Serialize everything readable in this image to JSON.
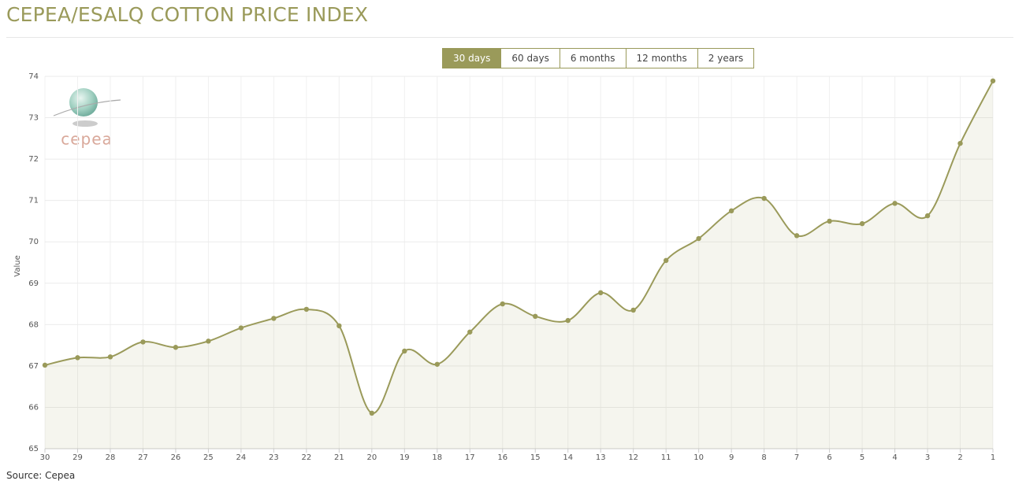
{
  "header": {
    "title": "CEPEA/ESALQ COTTON PRICE INDEX"
  },
  "range_buttons": {
    "labels": [
      "30 days",
      "60 days",
      "6 months",
      "12 months",
      "2 years"
    ],
    "active": 0
  },
  "logo": {
    "text": "cepea"
  },
  "chart_data": {
    "type": "line",
    "y_label": "Value",
    "categories": [
      "30",
      "29",
      "28",
      "27",
      "26",
      "25",
      "24",
      "23",
      "22",
      "21",
      "20",
      "19",
      "18",
      "17",
      "16",
      "15",
      "14",
      "13",
      "12",
      "11",
      "10",
      "9",
      "8",
      "7",
      "6",
      "5",
      "4",
      "3",
      "2",
      "1"
    ],
    "values": [
      67.02,
      67.2,
      67.22,
      67.58,
      67.45,
      67.6,
      67.92,
      68.15,
      68.37,
      67.97,
      65.86,
      67.36,
      67.04,
      67.82,
      68.5,
      68.2,
      68.1,
      68.77,
      68.35,
      69.55,
      70.08,
      70.75,
      71.05,
      70.15,
      70.5,
      70.44,
      70.93,
      70.63,
      72.38,
      73.89
    ],
    "color": "#9a9a5a",
    "area": true,
    "smooth": true,
    "grid": true,
    "ylim": [
      65,
      74
    ],
    "yticks": [
      65,
      66,
      67,
      68,
      69,
      70,
      71,
      72,
      73,
      74
    ]
  },
  "source": "Source: Cepea"
}
